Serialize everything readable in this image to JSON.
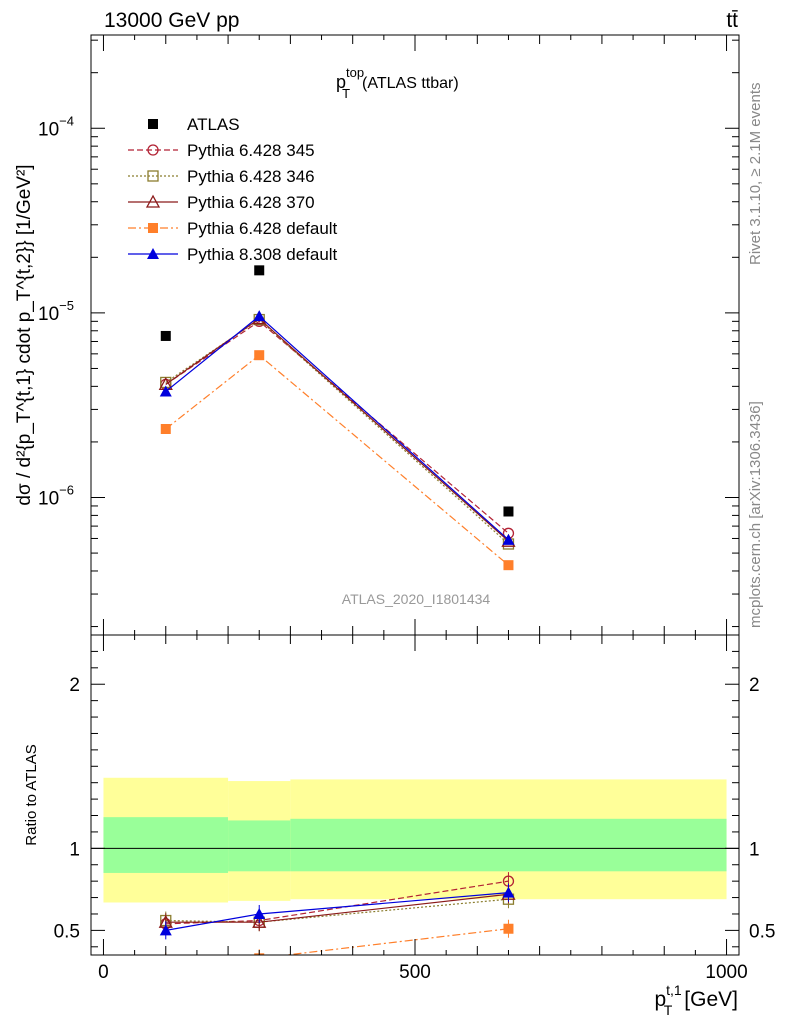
{
  "header": {
    "left": "13000 GeV pp",
    "right": "tt̄"
  },
  "side_labels": {
    "rivet": "Rivet 3.1.10, ≥ 2.1M events",
    "mcplots": "mcplots.cern.ch [arXiv:1306.3436]"
  },
  "chart_data": [
    {
      "type": "scatter",
      "title": "p_T^top (ATLAS ttbar)",
      "title_main": "p",
      "title_sup": "top",
      "title_sub": "T",
      "title_tail": "(ATLAS ttbar)",
      "ylabel": "dσ / d²{p_T^{t,1} cdot p_T^{t,2}} [1/GeV²]",
      "analysis_tag": "ATLAS_2020_I1801434",
      "x_scale": "linear",
      "y_scale": "log",
      "xlim": [
        -20,
        1020
      ],
      "ylim": [
        1.8e-07,
        0.00032
      ],
      "y_ticks": [
        {
          "value": 1e-06,
          "base": "10",
          "exp": "−6"
        },
        {
          "value": 1e-05,
          "base": "10",
          "exp": "−5"
        },
        {
          "value": 0.0001,
          "base": "10",
          "exp": "−4"
        }
      ],
      "legend_position": "top-left",
      "series": [
        {
          "name": "ATLAS",
          "color": "#000000",
          "dash": "",
          "marker": "square-filled",
          "x": [
            100,
            250,
            650
          ],
          "y": [
            7.5e-06,
            1.7e-05,
            8.4e-07
          ],
          "line": false
        },
        {
          "name": "Pythia 6.428 345",
          "color": "#b22234",
          "dash": "6,3",
          "marker": "circle-open",
          "x": [
            100,
            250,
            650
          ],
          "y": [
            4.1e-06,
            9e-06,
            6.4e-07
          ],
          "line": true
        },
        {
          "name": "Pythia 6.428 346",
          "color": "#8b7d2e",
          "dash": "2,2",
          "marker": "square-open",
          "x": [
            100,
            250,
            650
          ],
          "y": [
            4.2e-06,
            9.2e-06,
            5.6e-07
          ],
          "line": true
        },
        {
          "name": "Pythia 6.428 370",
          "color": "#8b1a1a",
          "dash": "",
          "marker": "triangle-open",
          "x": [
            100,
            250,
            650
          ],
          "y": [
            4.1e-06,
            9.3e-06,
            5.8e-07
          ],
          "line": true
        },
        {
          "name": "Pythia 6.428 default",
          "color": "#ff7f2a",
          "dash": "8,3,2,3",
          "marker": "square-filled",
          "x": [
            100,
            250,
            650
          ],
          "y": [
            2.35e-06,
            5.9e-06,
            4.3e-07
          ],
          "line": true
        },
        {
          "name": "Pythia 8.308 default",
          "color": "#0000dd",
          "dash": "",
          "marker": "triangle-filled",
          "x": [
            100,
            250,
            650
          ],
          "y": [
            3.75e-06,
            9.6e-06,
            5.9e-07
          ],
          "line": true
        }
      ]
    },
    {
      "type": "line",
      "ylabel": "Ratio to ATLAS",
      "xlabel": "p_T^{t,1} [GeV]",
      "xlabel_main": "p",
      "xlabel_sup": "t,1",
      "xlabel_sub": "T",
      "xlabel_unit": "[GeV]",
      "xlim": [
        -20,
        1020
      ],
      "ylim": [
        0.35,
        2.3
      ],
      "x_ticks": [
        0,
        500,
        1000
      ],
      "y_ticks": [
        0.5,
        1,
        2
      ],
      "reference": 1,
      "bands": [
        {
          "x_bins": [
            [
              0,
              200
            ],
            [
              200,
              300
            ],
            [
              300,
              1000
            ]
          ],
          "yellow": [
            [
              0.67,
              1.43
            ],
            [
              0.68,
              1.41
            ],
            [
              0.69,
              1.42
            ]
          ],
          "green": [
            [
              0.85,
              1.19
            ],
            [
              0.86,
              1.17
            ],
            [
              0.86,
              1.18
            ]
          ]
        }
      ],
      "series": [
        {
          "name": "Pythia 6.428 345",
          "x": [
            100,
            250,
            650
          ],
          "y": [
            0.54,
            0.56,
            0.8
          ]
        },
        {
          "name": "Pythia 6.428 346",
          "x": [
            100,
            250,
            650
          ],
          "y": [
            0.56,
            0.55,
            0.69
          ]
        },
        {
          "name": "Pythia 6.428 370",
          "x": [
            100,
            250,
            650
          ],
          "y": [
            0.55,
            0.55,
            0.72
          ]
        },
        {
          "name": "Pythia 6.428 default",
          "x": [
            100,
            250,
            650
          ],
          "y": [
            0.31,
            0.33,
            0.51
          ]
        },
        {
          "name": "Pythia 8.308 default",
          "x": [
            100,
            250,
            650
          ],
          "y": [
            0.5,
            0.6,
            0.73
          ]
        }
      ]
    }
  ]
}
